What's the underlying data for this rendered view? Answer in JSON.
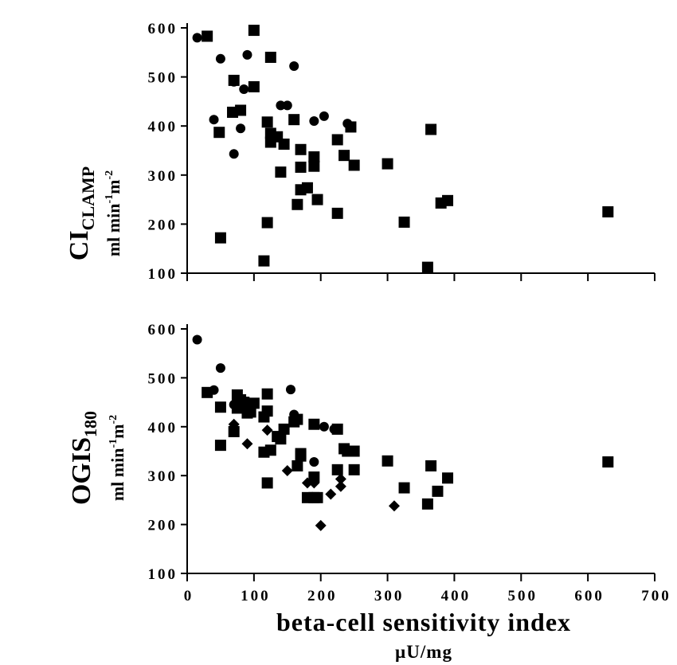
{
  "figure": {
    "xlabel": "beta-cell sensitivity index",
    "xunit": "µU/mg"
  },
  "chart_data": [
    {
      "type": "scatter",
      "ylabel_main": "CI",
      "ylabel_main_sub": "CLAMP",
      "ylabel_unit": "ml min-1m-2",
      "xlim": [
        0,
        700
      ],
      "ylim": [
        100,
        600
      ],
      "xticks": [
        "",
        "",
        "",
        "",
        "",
        "",
        "",
        ""
      ],
      "yticks": [
        "100",
        "200",
        "300",
        "400",
        "500",
        "600"
      ],
      "series": [
        {
          "marker": "circle",
          "points": [
            [
              15,
              580
            ],
            [
              50,
              537
            ],
            [
              90,
              545
            ],
            [
              160,
              522
            ],
            [
              70,
              490
            ],
            [
              85,
              475
            ],
            [
              40,
              413
            ],
            [
              80,
              395
            ],
            [
              70,
              343
            ],
            [
              140,
              442
            ],
            [
              150,
              442
            ],
            [
              190,
              410
            ],
            [
              205,
              420
            ],
            [
              240,
              405
            ]
          ]
        },
        {
          "marker": "square",
          "points": [
            [
              30,
              583
            ],
            [
              100,
              595
            ],
            [
              125,
              540
            ],
            [
              70,
              493
            ],
            [
              100,
              480
            ],
            [
              80,
              432
            ],
            [
              68,
              428
            ],
            [
              48,
              387
            ],
            [
              50,
              172
            ],
            [
              120,
              408
            ],
            [
              125,
              385
            ],
            [
              135,
              378
            ],
            [
              125,
              367
            ],
            [
              145,
              363
            ],
            [
              160,
              413
            ],
            [
              245,
              398
            ],
            [
              170,
              352
            ],
            [
              190,
              337
            ],
            [
              190,
              318
            ],
            [
              170,
              316
            ],
            [
              140,
              306
            ],
            [
              170,
              270
            ],
            [
              180,
              274
            ],
            [
              195,
              250
            ],
            [
              165,
              240
            ],
            [
              225,
              372
            ],
            [
              235,
              340
            ],
            [
              250,
              320
            ],
            [
              300,
              323
            ],
            [
              365,
              393
            ],
            [
              325,
              204
            ],
            [
              120,
              203
            ],
            [
              225,
              222
            ],
            [
              380,
              243
            ],
            [
              390,
              248
            ],
            [
              630,
              225
            ],
            [
              115,
              125
            ],
            [
              360,
              112
            ]
          ]
        }
      ]
    },
    {
      "type": "scatter",
      "ylabel_main": "OGIS",
      "ylabel_main_sub": "180",
      "ylabel_unit": "ml min-1m-2",
      "xlim": [
        0,
        700
      ],
      "ylim": [
        100,
        600
      ],
      "xticks": [
        "0",
        "100",
        "200",
        "300",
        "400",
        "500",
        "600",
        "700"
      ],
      "yticks": [
        "100",
        "200",
        "300",
        "400",
        "500",
        "600"
      ],
      "series": [
        {
          "marker": "circle",
          "points": [
            [
              15,
              578
            ],
            [
              50,
              520
            ],
            [
              40,
              475
            ],
            [
              155,
              476
            ],
            [
              70,
              445
            ],
            [
              90,
              440
            ],
            [
              160,
              425
            ],
            [
              190,
              328
            ],
            [
              205,
              400
            ],
            [
              220,
              395
            ]
          ]
        },
        {
          "marker": "square",
          "points": [
            [
              30,
              470
            ],
            [
              50,
              440
            ],
            [
              75,
              465
            ],
            [
              80,
              455
            ],
            [
              85,
              450
            ],
            [
              100,
              448
            ],
            [
              75,
              438
            ],
            [
              95,
              430
            ],
            [
              90,
              428
            ],
            [
              50,
              362
            ],
            [
              70,
              390
            ],
            [
              120,
              467
            ],
            [
              120,
              432
            ],
            [
              115,
              420
            ],
            [
              160,
              410
            ],
            [
              165,
              415
            ],
            [
              190,
              405
            ],
            [
              225,
              395
            ],
            [
              135,
              380
            ],
            [
              140,
              375
            ],
            [
              145,
              395
            ],
            [
              125,
              352
            ],
            [
              115,
              348
            ],
            [
              170,
              345
            ],
            [
              170,
              340
            ],
            [
              165,
              320
            ],
            [
              120,
              285
            ],
            [
              180,
              255
            ],
            [
              190,
              255
            ],
            [
              195,
              255
            ],
            [
              190,
              297
            ],
            [
              225,
              312
            ],
            [
              235,
              355
            ],
            [
              240,
              350
            ],
            [
              250,
              312
            ],
            [
              250,
              350
            ],
            [
              300,
              330
            ],
            [
              325,
              275
            ],
            [
              360,
              242
            ],
            [
              365,
              320
            ],
            [
              375,
              268
            ],
            [
              390,
              295
            ],
            [
              630,
              328
            ]
          ]
        },
        {
          "marker": "diamond",
          "points": [
            [
              70,
              405
            ],
            [
              90,
              365
            ],
            [
              120,
              393
            ],
            [
              150,
              310
            ],
            [
              180,
              285
            ],
            [
              190,
              285
            ],
            [
              200,
              198
            ],
            [
              215,
              262
            ],
            [
              230,
              293
            ],
            [
              230,
              278
            ],
            [
              310,
              238
            ]
          ]
        }
      ]
    }
  ]
}
